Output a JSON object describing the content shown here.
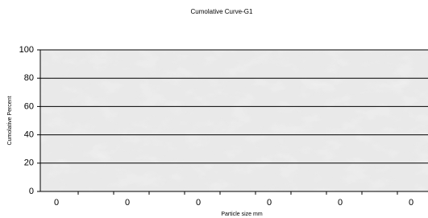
{
  "chart_data": {
    "type": "line",
    "title": "Cumolative Curve-G1",
    "x_label": "Particle size mm",
    "y_label": "Cumolative Percent",
    "categories": [
      "0",
      "0",
      "0",
      "0",
      "0",
      "0"
    ],
    "ylim": [
      0,
      100
    ],
    "yticks": [
      0,
      20,
      40,
      60,
      80,
      100
    ],
    "grid": true,
    "grid_color": "#000000"
  }
}
